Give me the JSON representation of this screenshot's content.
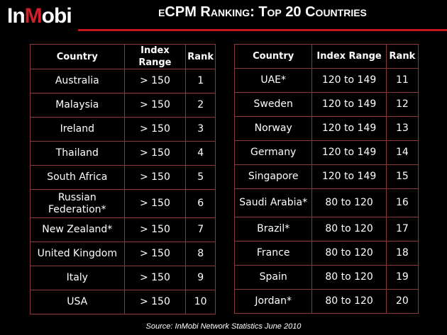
{
  "logo": {
    "text_a": "In",
    "text_b": "M",
    "text_c": "obi"
  },
  "title": "eCPM Ranking:  Top 20 Countries",
  "headers": [
    "Country",
    "Index Range",
    "Rank"
  ],
  "left": [
    [
      "Australia",
      "> 150",
      "1"
    ],
    [
      "Malaysia",
      "> 150",
      "2"
    ],
    [
      "Ireland",
      "> 150",
      "3"
    ],
    [
      "Thailand",
      "> 150",
      "4"
    ],
    [
      "South Africa",
      "> 150",
      "5"
    ],
    [
      "Russian Federation*",
      "> 150",
      "6"
    ],
    [
      "New Zealand*",
      "> 150",
      "7"
    ],
    [
      "United Kingdom",
      "> 150",
      "8"
    ],
    [
      "Italy",
      "> 150",
      "9"
    ],
    [
      "USA",
      "> 150",
      "10"
    ]
  ],
  "right": [
    [
      "UAE*",
      "120 to 149",
      "11"
    ],
    [
      "Sweden",
      "120 to 149",
      "12"
    ],
    [
      "Norway",
      "120 to 149",
      "13"
    ],
    [
      "Germany",
      "120 to 149",
      "14"
    ],
    [
      "Singapore",
      "120 to 149",
      "15"
    ],
    [
      "Saudi Arabia*",
      "80 to 120",
      "16"
    ],
    [
      "Brazil*",
      "80 to 120",
      "17"
    ],
    [
      "France",
      "80 to 120",
      "18"
    ],
    [
      "Spain",
      "80 to 120",
      "19"
    ],
    [
      "Jordan*",
      "80 to 120",
      "20"
    ]
  ],
  "source": "Source:  InMobi Network Statistics June 2010"
}
